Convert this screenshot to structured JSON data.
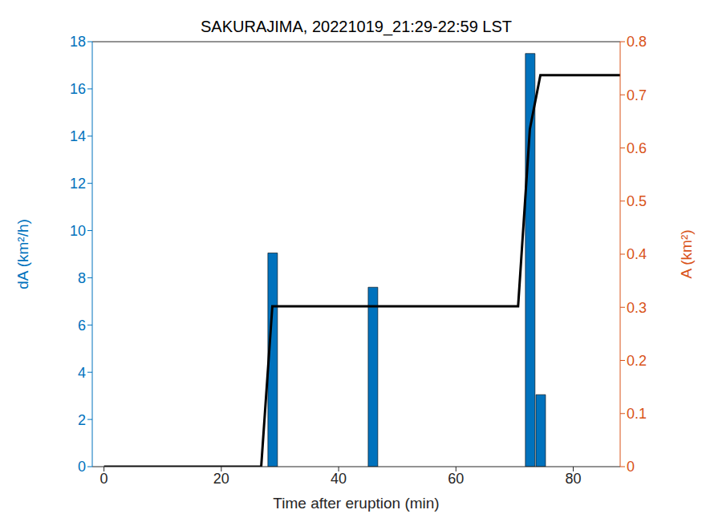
{
  "chart_data": {
    "type": "bar",
    "title": "SAKURAJIMA, 20221019_21:29-22:59 LST",
    "x_label": "Time after eruption (min)",
    "y_label": "dA (km²/h)",
    "y2_label": "A (km²)",
    "xlim": [
      -2,
      88
    ],
    "xticks": [
      0,
      20,
      40,
      60,
      80
    ],
    "ylim": [
      0,
      18
    ],
    "yticks": [
      0,
      2,
      4,
      6,
      8,
      10,
      12,
      14,
      16,
      18
    ],
    "y2lim": [
      0,
      0.8
    ],
    "y2ticks": [
      0,
      0.1,
      0.2,
      0.3,
      0.4,
      0.5,
      0.6,
      0.7,
      0.8
    ],
    "y_color": "#0072BD",
    "y2_color": "#D95319",
    "series": [
      {
        "type": "bar",
        "color": "#0072BD",
        "x": [
          28.7,
          45.8,
          72.6,
          74.4
        ],
        "values": [
          9.05,
          7.6,
          17.5,
          3.05
        ]
      },
      {
        "type": "line",
        "axis": "y2",
        "color": "#000000",
        "x": [
          0,
          26.8,
          28.7,
          70.6,
          72.6,
          74.4,
          88
        ],
        "values": [
          0,
          0,
          0.302,
          0.302,
          0.635,
          0.737,
          0.737
        ]
      }
    ]
  }
}
